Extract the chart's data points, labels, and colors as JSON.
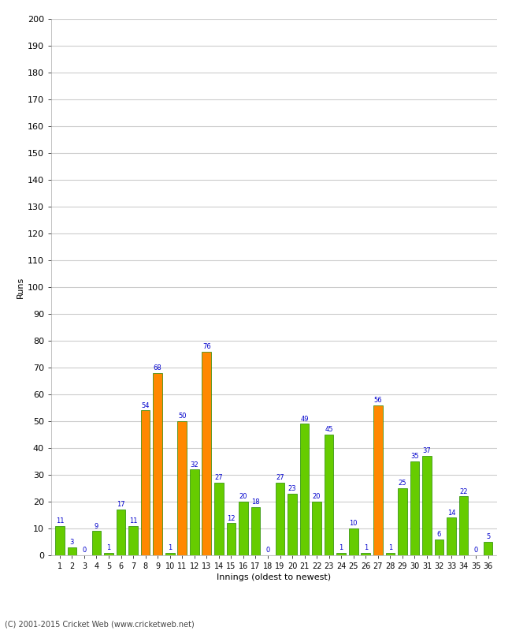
{
  "innings": [
    1,
    2,
    3,
    4,
    5,
    6,
    7,
    8,
    9,
    10,
    11,
    12,
    13,
    14,
    15,
    16,
    17,
    18,
    19,
    20,
    21,
    22,
    23,
    24,
    25,
    26,
    27,
    28,
    29,
    30,
    31,
    32,
    33,
    34,
    35,
    36
  ],
  "values": [
    11,
    3,
    0,
    9,
    1,
    17,
    11,
    54,
    68,
    1,
    50,
    32,
    76,
    27,
    12,
    20,
    18,
    0,
    27,
    23,
    49,
    20,
    45,
    1,
    10,
    1,
    56,
    1,
    25,
    35,
    37,
    6,
    14,
    22,
    0,
    5
  ],
  "bar_colors": [
    "#66cc00",
    "#66cc00",
    "#66cc00",
    "#66cc00",
    "#66cc00",
    "#66cc00",
    "#66cc00",
    "#ff8800",
    "#ff8800",
    "#66cc00",
    "#ff8800",
    "#66cc00",
    "#ff8800",
    "#66cc00",
    "#66cc00",
    "#66cc00",
    "#66cc00",
    "#66cc00",
    "#66cc00",
    "#66cc00",
    "#66cc00",
    "#66cc00",
    "#66cc00",
    "#66cc00",
    "#66cc00",
    "#66cc00",
    "#ff8800",
    "#66cc00",
    "#66cc00",
    "#66cc00",
    "#66cc00",
    "#66cc00",
    "#66cc00",
    "#66cc00",
    "#66cc00",
    "#66cc00"
  ],
  "ylabel": "Runs",
  "xlabel": "Innings (oldest to newest)",
  "ylim": [
    0,
    200
  ],
  "yticks": [
    0,
    10,
    20,
    30,
    40,
    50,
    60,
    70,
    80,
    90,
    100,
    110,
    120,
    130,
    140,
    150,
    160,
    170,
    180,
    190,
    200
  ],
  "label_color": "#0000cc",
  "bar_edge_color": "#228800",
  "background_color": "#ffffff",
  "grid_color": "#cccccc",
  "footer": "(C) 2001-2015 Cricket Web (www.cricketweb.net)"
}
